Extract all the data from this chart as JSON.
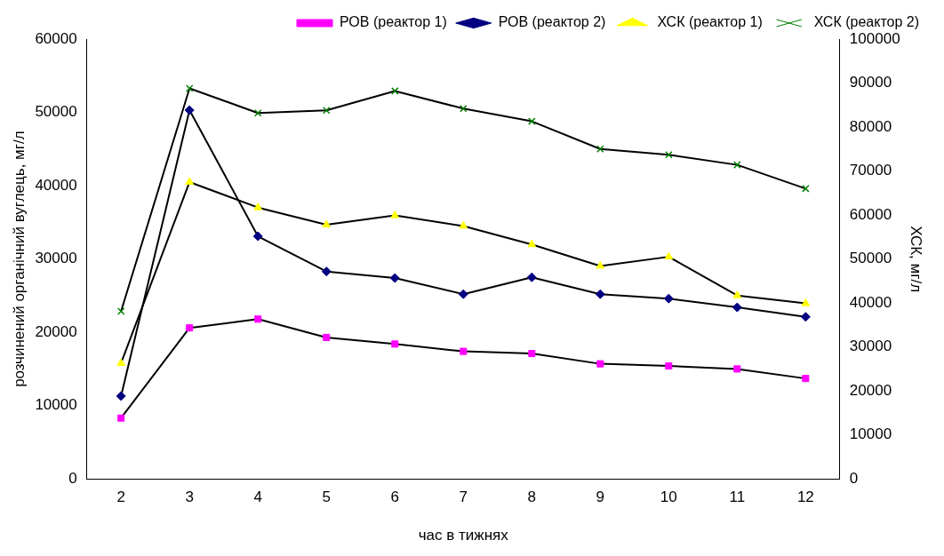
{
  "chart_data": {
    "type": "line",
    "categories": [
      "2",
      "3",
      "4",
      "5",
      "6",
      "7",
      "8",
      "9",
      "10",
      "11",
      "12"
    ],
    "xlabel": "час в тижнях",
    "ylabel": "розчинений органічний вуглець, мг/л",
    "y2label": "ХСК, мг/л",
    "ylim": [
      0,
      60000
    ],
    "yticks": [
      0,
      10000,
      20000,
      30000,
      40000,
      50000,
      60000
    ],
    "y2lim": [
      0,
      100000
    ],
    "y2ticks": [
      0,
      10000,
      20000,
      30000,
      40000,
      50000,
      60000,
      70000,
      80000,
      90000,
      100000
    ],
    "grid": false,
    "legend": "top right",
    "series": [
      {
        "name": "РОВ (реактор 1)",
        "color": "#ff00ff",
        "marker": "square",
        "values": [
          8300,
          20600,
          21800,
          19300,
          18400,
          17400,
          17100,
          15700,
          15400,
          15000,
          13700
        ]
      },
      {
        "name": "РОВ (реактор 2)",
        "color": "#000080",
        "marker": "diamond",
        "values": [
          11300,
          50300,
          33100,
          28300,
          27400,
          25200,
          27500,
          25200,
          24600,
          23400,
          22100
        ]
      },
      {
        "name": "ХСК (реактор 1)",
        "color": "#ffff00",
        "marker": "triangle",
        "axis": "y2",
        "values": [
          26300,
          67500,
          61700,
          57800,
          59900,
          57500,
          53300,
          48400,
          50500,
          41700,
          39900
        ]
      },
      {
        "name": "ХСК (реактор 2)",
        "color": "#008000",
        "marker": "cross",
        "axis": "y2",
        "values": [
          38100,
          88800,
          83200,
          83800,
          88200,
          84200,
          81300,
          75000,
          73700,
          71400,
          66000
        ]
      }
    ]
  }
}
